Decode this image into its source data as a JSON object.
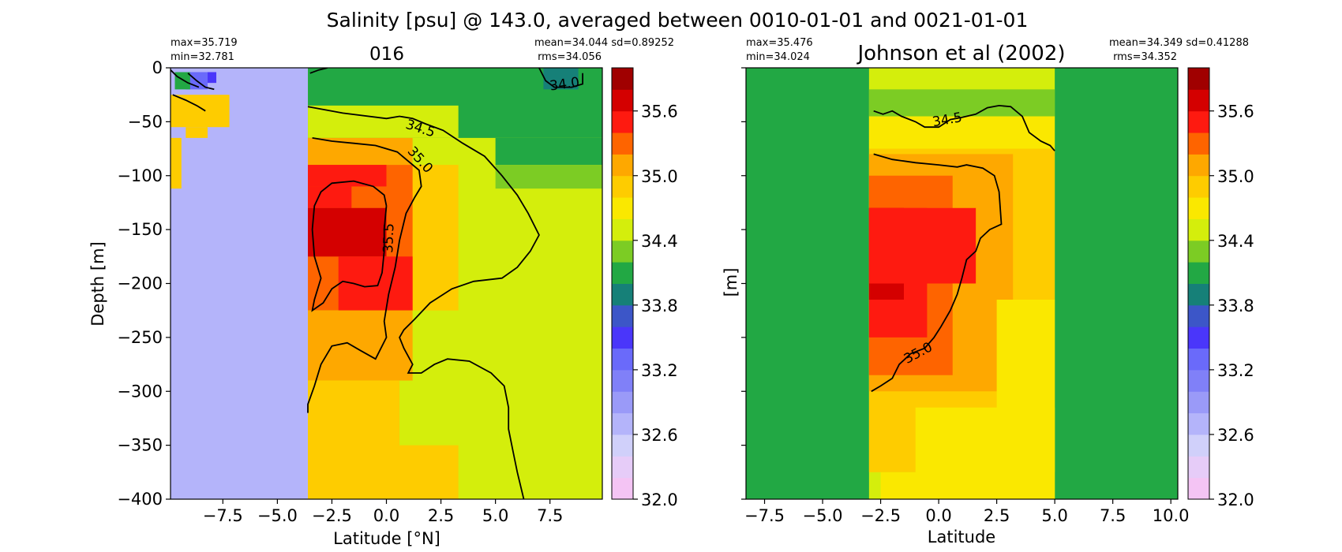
{
  "figure": {
    "suptitle": "Salinity [psu] @ 143.0, averaged between 0010-01-01 and 0021-01-01"
  },
  "colorbar": {
    "levels": [
      32.0,
      32.2,
      32.4,
      32.6,
      32.8,
      33.0,
      33.2,
      33.4,
      33.6,
      33.8,
      34.0,
      34.2,
      34.4,
      34.6,
      34.8,
      35.0,
      35.2,
      35.4,
      35.6,
      35.8,
      36.0
    ],
    "colors": [
      "#f4c4f4",
      "#e6ccf8",
      "#d0d0fa",
      "#b4b4fa",
      "#9a9af8",
      "#8080f8",
      "#6a6afa",
      "#4a36fa",
      "#3c56c8",
      "#168078",
      "#22a844",
      "#7ccc24",
      "#d4ee0c",
      "#fae800",
      "#fecc00",
      "#fea800",
      "#fe6400",
      "#fe1a10",
      "#d40000",
      "#a00000",
      "#6a0000"
    ],
    "tick_labels": [
      "32.0",
      "32.6",
      "33.2",
      "33.8",
      "34.4",
      "35.0",
      "35.6"
    ],
    "ticks": [
      32.0,
      32.6,
      33.2,
      33.8,
      34.4,
      35.0,
      35.6
    ]
  },
  "chart_data": [
    {
      "type": "heatmap",
      "title": "016",
      "xlabel": "Latitude [°N]",
      "ylabel": "Depth [m]",
      "xlim": [
        -9.9,
        9.9
      ],
      "ylim": [
        -400,
        0
      ],
      "xticks": [
        -7.5,
        -5.0,
        -2.5,
        0.0,
        2.5,
        5.0,
        7.5
      ],
      "xtick_labels": [
        "−7.5",
        "−5.0",
        "−2.5",
        "0.0",
        "2.5",
        "5.0",
        "7.5"
      ],
      "yticks": [
        0,
        -50,
        -100,
        -150,
        -200,
        -250,
        -300,
        -350,
        -400
      ],
      "ytick_labels": [
        "0",
        "−50",
        "−100",
        "−150",
        "−200",
        "−250",
        "−300",
        "−350",
        "−400"
      ],
      "stats_left": [
        "max=35.719",
        "min=32.781"
      ],
      "stats_right": [
        "mean=34.044 sd=0.89252",
        "rms=34.056"
      ],
      "background_value": 34.5,
      "cells": [
        [
          -9.9,
          -3.6,
          0,
          -400,
          32.7
        ],
        [
          -3.6,
          9.9,
          0,
          -65,
          34.1
        ],
        [
          -3.6,
          3.3,
          -35,
          -65,
          34.5
        ],
        [
          -3.6,
          1.2,
          -65,
          -90,
          35.1
        ],
        [
          -3.6,
          3.3,
          -90,
          -225,
          34.9
        ],
        [
          -3.6,
          1.2,
          -90,
          -225,
          35.3
        ],
        [
          -3.6,
          0.0,
          -90,
          -110,
          35.5
        ],
        [
          -3.6,
          -1.6,
          -110,
          -130,
          35.5
        ],
        [
          -3.6,
          0.0,
          -130,
          -175,
          35.7
        ],
        [
          -2.2,
          1.2,
          -175,
          -225,
          35.5
        ],
        [
          -3.6,
          1.2,
          -225,
          -290,
          35.1
        ],
        [
          -3.6,
          0.6,
          -290,
          -420,
          34.9
        ],
        [
          -3.6,
          3.3,
          -350,
          -420,
          34.9
        ],
        [
          5.0,
          9.9,
          -65,
          -90,
          34.1
        ],
        [
          5.0,
          9.9,
          -90,
          -112,
          34.3
        ],
        [
          -9.9,
          -7.2,
          -25,
          -55,
          34.9
        ],
        [
          -9.2,
          -8.2,
          -55,
          -65,
          34.9
        ],
        [
          -9.9,
          -9.4,
          -65,
          -112,
          34.9
        ],
        [
          -9.2,
          -8.2,
          -4,
          -20,
          33.3
        ],
        [
          -9.7,
          -9.0,
          -4,
          -20,
          34.1
        ],
        [
          -8.2,
          -7.8,
          -4,
          -14,
          33.5
        ],
        [
          7.2,
          8.8,
          0,
          -20,
          33.9
        ]
      ],
      "contours": [
        {
          "label": "34.5",
          "points": [
            [
              -3.6,
              -36
            ],
            [
              -2.0,
              -42
            ],
            [
              0.0,
              -47
            ],
            [
              0.6,
              -45
            ],
            [
              1.2,
              -47
            ],
            [
              1.8,
              -52
            ],
            [
              2.6,
              -58
            ],
            [
              3.5,
              -70
            ],
            [
              4.5,
              -82
            ],
            [
              5.3,
              -100
            ],
            [
              6.0,
              -118
            ],
            [
              6.5,
              -135
            ],
            [
              7.0,
              -155
            ],
            [
              6.6,
              -170
            ],
            [
              6.0,
              -185
            ],
            [
              5.3,
              -195
            ],
            [
              4.0,
              -198
            ],
            [
              3.0,
              -205
            ],
            [
              2.0,
              -218
            ],
            [
              1.3,
              -233
            ],
            [
              0.8,
              -243
            ],
            [
              0.6,
              -250
            ],
            [
              0.8,
              -260
            ],
            [
              1.2,
              -275
            ],
            [
              1.0,
              -283
            ],
            [
              1.6,
              -283
            ],
            [
              2.2,
              -275
            ],
            [
              2.8,
              -270
            ],
            [
              3.8,
              -272
            ],
            [
              4.8,
              -283
            ],
            [
              5.4,
              -295
            ],
            [
              5.6,
              -315
            ],
            [
              5.6,
              -335
            ],
            [
              5.8,
              -355
            ],
            [
              6.0,
              -375
            ],
            [
              6.3,
              -400
            ]
          ]
        },
        {
          "label": "35.0",
          "points": [
            [
              -3.4,
              -65
            ],
            [
              -2.5,
              -68
            ],
            [
              -1.5,
              -70
            ],
            [
              -0.5,
              -72
            ],
            [
              0.5,
              -78
            ],
            [
              1.5,
              -95
            ],
            [
              1.6,
              -110
            ],
            [
              1.3,
              -120
            ],
            [
              0.9,
              -135
            ],
            [
              0.6,
              -160
            ],
            [
              0.4,
              -185
            ],
            [
              0.1,
              -210
            ],
            [
              -0.1,
              -235
            ],
            [
              0.0,
              -250
            ],
            [
              -0.3,
              -262
            ],
            [
              -0.5,
              -270
            ],
            [
              -1.2,
              -262
            ],
            [
              -1.8,
              -255
            ],
            [
              -2.5,
              -258
            ],
            [
              -3.0,
              -275
            ],
            [
              -3.3,
              -295
            ],
            [
              -3.6,
              -312
            ],
            [
              -3.6,
              -320
            ]
          ]
        },
        {
          "label": "35.5",
          "points": [
            [
              0.0,
              -128
            ],
            [
              -0.1,
              -118
            ],
            [
              -0.6,
              -110
            ],
            [
              -1.5,
              -105
            ],
            [
              -2.5,
              -107
            ],
            [
              -3.0,
              -115
            ],
            [
              -3.3,
              -128
            ],
            [
              -3.4,
              -150
            ],
            [
              -3.3,
              -175
            ],
            [
              -3.0,
              -195
            ],
            [
              -3.3,
              -215
            ],
            [
              -3.4,
              -225
            ],
            [
              -2.9,
              -218
            ],
            [
              -2.5,
              -205
            ],
            [
              -2.0,
              -198
            ],
            [
              -1.5,
              -200
            ],
            [
              -1.0,
              -203
            ],
            [
              -0.4,
              -202
            ],
            [
              -0.2,
              -190
            ],
            [
              -0.1,
              -170
            ],
            [
              -0.1,
              -150
            ],
            [
              0.0,
              -128
            ]
          ]
        },
        {
          "label": "",
          "points": [
            [
              -9.8,
              -25
            ],
            [
              -9.2,
              -30
            ],
            [
              -8.7,
              -35
            ],
            [
              -8.3,
              -40
            ]
          ]
        },
        {
          "label": "",
          "points": [
            [
              -9.1,
              -5
            ],
            [
              -8.7,
              -12
            ],
            [
              -8.3,
              -18
            ],
            [
              -7.9,
              -20
            ]
          ]
        },
        {
          "label": "",
          "points": [
            [
              -9.9,
              -2
            ],
            [
              -9.6,
              -8
            ],
            [
              -9.1,
              -14
            ],
            [
              -8.6,
              -18
            ]
          ]
        },
        {
          "label": "",
          "points": [
            [
              -3.5,
              -5
            ],
            [
              -3.1,
              -2
            ],
            [
              -2.7,
              0
            ]
          ]
        },
        {
          "label": "34.0",
          "points": [
            [
              7.0,
              0
            ],
            [
              7.3,
              -12
            ],
            [
              7.7,
              -18
            ],
            [
              8.5,
              -18
            ],
            [
              9.0,
              -15
            ],
            [
              9.0,
              -5
            ]
          ]
        }
      ],
      "contour_labels": [
        {
          "text": "34.5",
          "x": 1.5,
          "y": -60,
          "rot": 18
        },
        {
          "text": "35.0",
          "x": 1.4,
          "y": -88,
          "rot": 48
        },
        {
          "text": "35.5",
          "x": 0.3,
          "y": -158,
          "rot": -88
        },
        {
          "text": "34.0",
          "x": 8.2,
          "y": -19,
          "rot": -8
        }
      ]
    },
    {
      "type": "heatmap",
      "title": "Johnson et al (2002)",
      "xlabel": "Latitude",
      "ylabel": "[m]",
      "xlim": [
        -8.3,
        10.3
      ],
      "ylim": [
        -400,
        0
      ],
      "xticks": [
        -7.5,
        -5.0,
        -2.5,
        0.0,
        2.5,
        5.0,
        7.5,
        10.0
      ],
      "xtick_labels": [
        "−7.5",
        "−5.0",
        "−2.5",
        "0.0",
        "2.5",
        "5.0",
        "7.5",
        "10.0"
      ],
      "yticks": [
        0,
        -50,
        -100,
        -150,
        -200,
        -250,
        -300,
        -350,
        -400
      ],
      "ytick_labels": [],
      "stats_left": [
        "max=35.476",
        "min=34.024"
      ],
      "stats_right": [
        "mean=34.349 sd=0.41288",
        "rms=34.352"
      ],
      "background_value": 34.1,
      "cells": [
        [
          -3.0,
          5.0,
          0,
          -400,
          34.5
        ],
        [
          -3.0,
          5.0,
          -20,
          -45,
          34.3
        ],
        [
          -3.0,
          5.0,
          -45,
          -75,
          34.7
        ],
        [
          -3.0,
          5.0,
          -75,
          -375,
          34.9
        ],
        [
          -3.0,
          3.2,
          -80,
          -300,
          35.1
        ],
        [
          -3.0,
          0.6,
          -100,
          -285,
          35.3
        ],
        [
          -3.0,
          -0.5,
          -130,
          -250,
          35.5
        ],
        [
          -3.0,
          -1.5,
          -130,
          -215,
          35.7
        ],
        [
          -3.0,
          1.6,
          -130,
          -200,
          35.4
        ],
        [
          -1.0,
          5.0,
          -315,
          -400,
          34.7
        ],
        [
          2.5,
          5.0,
          -215,
          -400,
          34.7
        ],
        [
          -2.5,
          3.3,
          -375,
          -400,
          34.7
        ]
      ],
      "contours": [
        {
          "label": "34.5",
          "points": [
            [
              -2.8,
              -40
            ],
            [
              -2.4,
              -43
            ],
            [
              -2.0,
              -40
            ],
            [
              -1.6,
              -45
            ],
            [
              -1.0,
              -50
            ],
            [
              -0.6,
              -55
            ],
            [
              0.0,
              -55
            ],
            [
              0.5,
              -48
            ],
            [
              1.0,
              -46
            ],
            [
              1.6,
              -43
            ],
            [
              2.1,
              -37
            ],
            [
              2.6,
              -35
            ],
            [
              3.1,
              -36
            ],
            [
              3.6,
              -45
            ],
            [
              3.9,
              -60
            ],
            [
              4.4,
              -68
            ],
            [
              4.8,
              -72
            ],
            [
              5.0,
              -77
            ]
          ]
        },
        {
          "label": "35.0",
          "points": [
            [
              -2.8,
              -80
            ],
            [
              -2.0,
              -85
            ],
            [
              -1.0,
              -88
            ],
            [
              0.0,
              -90
            ],
            [
              0.8,
              -92
            ],
            [
              1.2,
              -90
            ],
            [
              1.9,
              -93
            ],
            [
              2.4,
              -100
            ],
            [
              2.6,
              -115
            ],
            [
              2.7,
              -145
            ],
            [
              2.2,
              -150
            ],
            [
              1.8,
              -158
            ],
            [
              1.6,
              -170
            ],
            [
              1.2,
              -178
            ],
            [
              1.0,
              -195
            ],
            [
              0.8,
              -210
            ],
            [
              0.5,
              -225
            ],
            [
              0.1,
              -240
            ],
            [
              -0.2,
              -250
            ],
            [
              -0.6,
              -260
            ],
            [
              -1.2,
              -265
            ],
            [
              -1.7,
              -275
            ],
            [
              -2.0,
              -288
            ],
            [
              -2.5,
              -295
            ],
            [
              -2.9,
              -300
            ]
          ]
        }
      ],
      "contour_labels": [
        {
          "text": "34.5",
          "x": 0.4,
          "y": -52,
          "rot": -10
        },
        {
          "text": "35.0",
          "x": -0.8,
          "y": -268,
          "rot": -28
        }
      ]
    }
  ]
}
